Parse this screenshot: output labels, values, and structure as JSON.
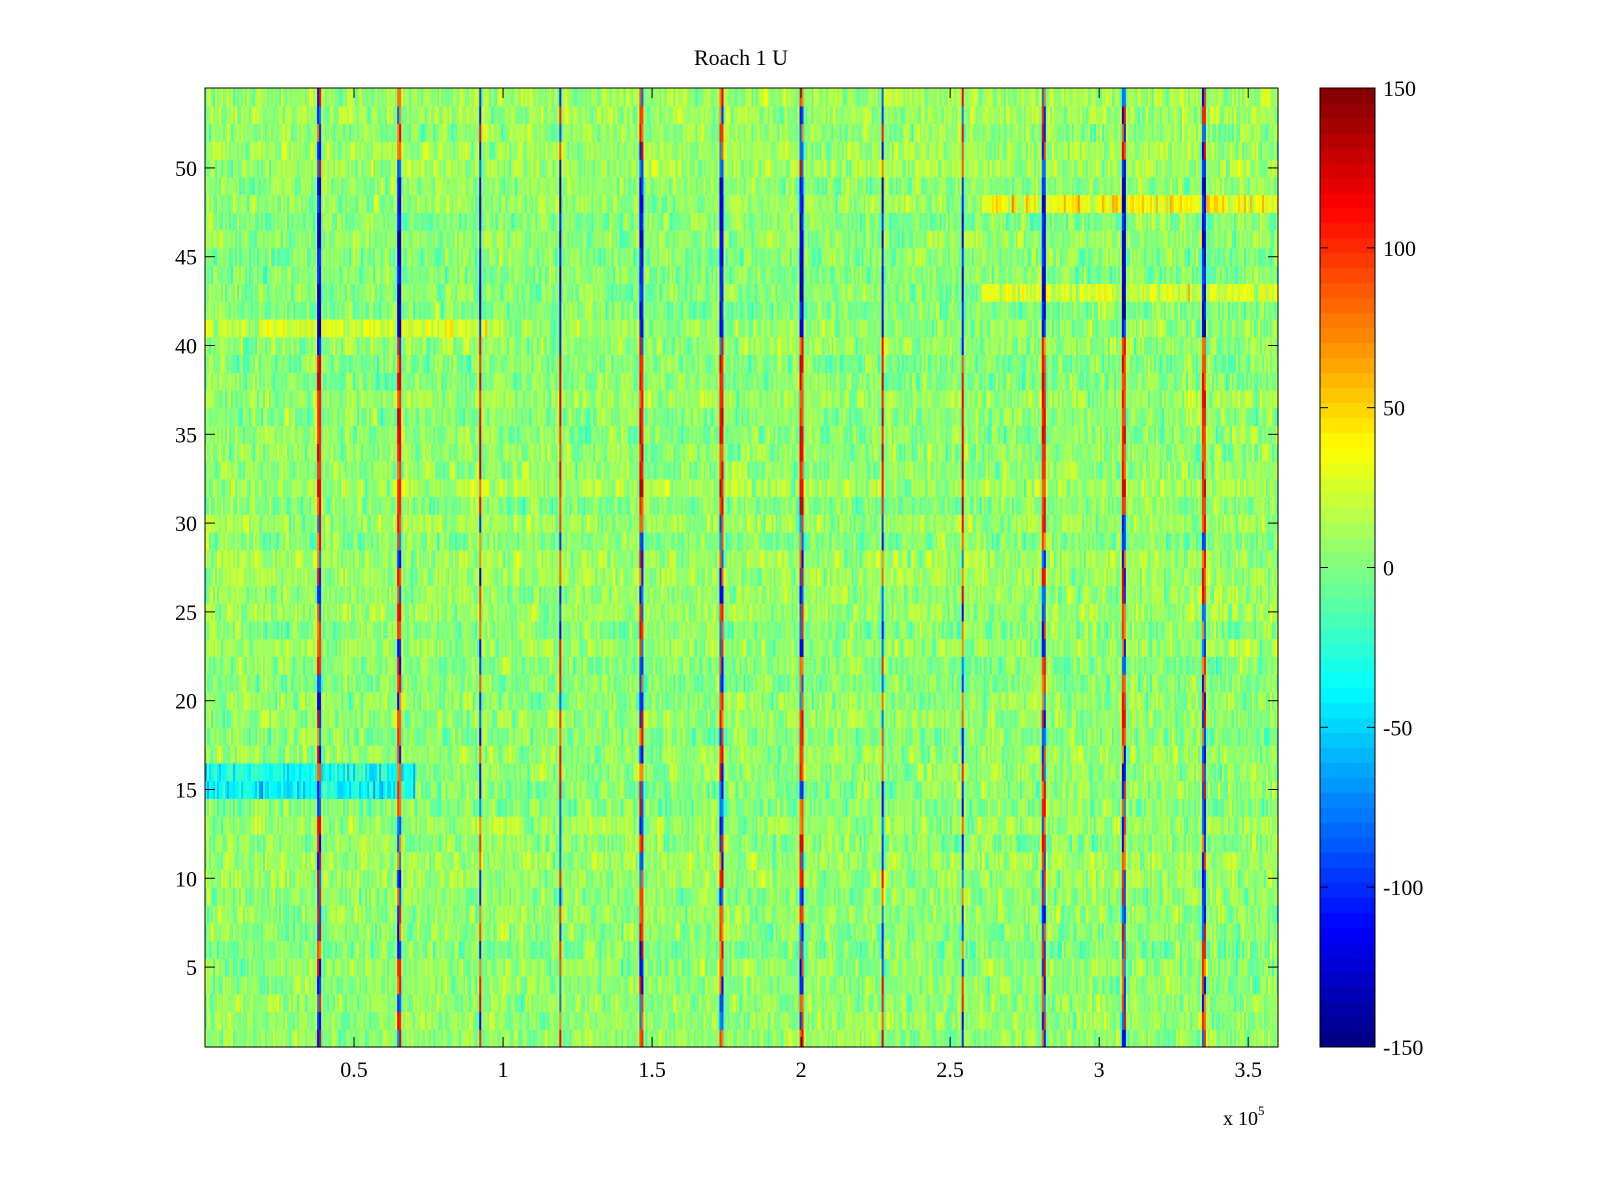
{
  "chart_data": {
    "type": "heatmap",
    "title": "Roach 1 U",
    "xlabel": "",
    "ylabel": "",
    "x_range": [
      0,
      360000
    ],
    "y_range": [
      0.5,
      54.5
    ],
    "rows": 54,
    "x_ticks": [
      {
        "value": 50000,
        "label": "0.5"
      },
      {
        "value": 100000,
        "label": "1"
      },
      {
        "value": 150000,
        "label": "1.5"
      },
      {
        "value": 200000,
        "label": "2"
      },
      {
        "value": 250000,
        "label": "2.5"
      },
      {
        "value": 300000,
        "label": "3"
      },
      {
        "value": 350000,
        "label": "3.5"
      }
    ],
    "x_multiplier": {
      "base": "x 10",
      "exponent": "5"
    },
    "y_ticks": [
      {
        "value": 5,
        "label": "5"
      },
      {
        "value": 10,
        "label": "10"
      },
      {
        "value": 15,
        "label": "15"
      },
      {
        "value": 20,
        "label": "20"
      },
      {
        "value": 25,
        "label": "25"
      },
      {
        "value": 30,
        "label": "30"
      },
      {
        "value": 35,
        "label": "35"
      },
      {
        "value": 40,
        "label": "40"
      },
      {
        "value": 45,
        "label": "45"
      },
      {
        "value": 50,
        "label": "50"
      }
    ],
    "colorbar": {
      "colormap": "jet",
      "range": [
        -150,
        150
      ],
      "ticks": [
        {
          "value": 150,
          "label": "150"
        },
        {
          "value": 100,
          "label": "100"
        },
        {
          "value": 50,
          "label": "50"
        },
        {
          "value": 0,
          "label": "0"
        },
        {
          "value": -50,
          "label": "-50"
        },
        {
          "value": -100,
          "label": "-100"
        },
        {
          "value": -150,
          "label": "-150"
        }
      ]
    },
    "periodic_spike_columns_x": [
      38000,
      65000,
      92000,
      119000,
      146000,
      173000,
      200000,
      227000,
      254000,
      281000,
      308000,
      335000
    ],
    "row_bias": {
      "15": {
        "x_from": 0,
        "x_to": 70000,
        "value": -45
      },
      "16": {
        "x_from": 0,
        "x_to": 70000,
        "value": -40
      },
      "48": {
        "x_from": 260000,
        "x_to": 360000,
        "value": 35
      },
      "43": {
        "x_from": 260000,
        "x_to": 360000,
        "value": 25
      },
      "41": {
        "x_from": 0,
        "x_to": 100000,
        "value": 20
      }
    }
  }
}
